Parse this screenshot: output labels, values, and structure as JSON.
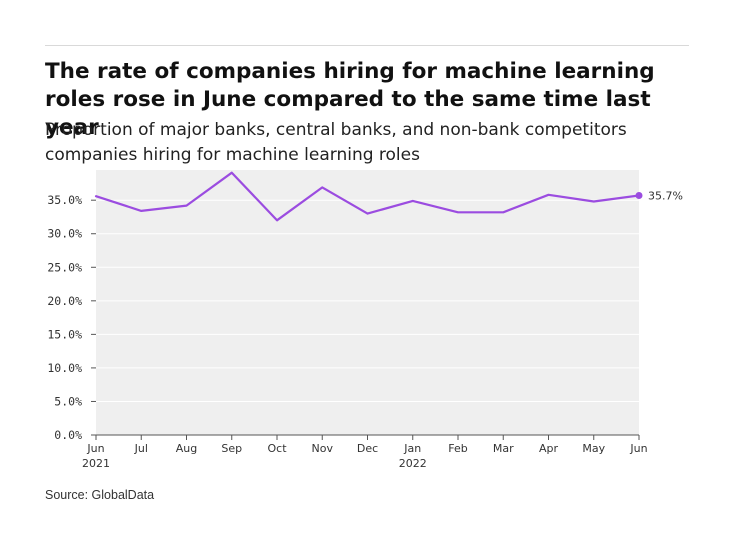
{
  "header": {
    "title": "The rate of companies hiring for machine learning roles rose in June compared to the same time last year",
    "subtitle": "Proportion of major banks, central banks, and non-bank competitors companies hiring for machine learning roles"
  },
  "footer": {
    "source": "Source: GlobalData"
  },
  "colors": {
    "line": "#9b4ce0",
    "plot_bg": "#efefef",
    "grid": "#ffffff",
    "axis": "#555555"
  },
  "chart_data": {
    "type": "line",
    "x": [
      "Jun 2021",
      "Jul 2021",
      "Aug 2021",
      "Sep 2021",
      "Oct 2021",
      "Nov 2021",
      "Dec 2021",
      "Jan 2022",
      "Feb 2022",
      "Mar 2022",
      "Apr 2022",
      "May 2022",
      "Jun 2022"
    ],
    "x_tick_labels": [
      {
        "line1": "Jun",
        "line2": "2021"
      },
      {
        "line1": "Jul",
        "line2": ""
      },
      {
        "line1": "Aug",
        "line2": ""
      },
      {
        "line1": "Sep",
        "line2": ""
      },
      {
        "line1": "Oct",
        "line2": ""
      },
      {
        "line1": "Nov",
        "line2": ""
      },
      {
        "line1": "Dec",
        "line2": ""
      },
      {
        "line1": "Jan",
        "line2": "2022"
      },
      {
        "line1": "Feb",
        "line2": ""
      },
      {
        "line1": "Mar",
        "line2": ""
      },
      {
        "line1": "Apr",
        "line2": ""
      },
      {
        "line1": "May",
        "line2": ""
      },
      {
        "line1": "Jun",
        "line2": ""
      }
    ],
    "series": [
      {
        "values": [
          35.6,
          33.4,
          34.2,
          39.1,
          32.0,
          36.9,
          33.0,
          34.9,
          33.2,
          33.2,
          35.8,
          34.8,
          35.7
        ]
      }
    ],
    "end_label": "35.7%",
    "y_ticks": [
      0,
      5,
      10,
      15,
      20,
      25,
      30,
      35
    ],
    "y_tick_labels": [
      "0.0%",
      "5.0%",
      "10.0%",
      "15.0%",
      "20.0%",
      "25.0%",
      "30.0%",
      "35.0%"
    ],
    "ylim": [
      0,
      39.5
    ],
    "grid": true,
    "xlabel": "",
    "ylabel": ""
  }
}
